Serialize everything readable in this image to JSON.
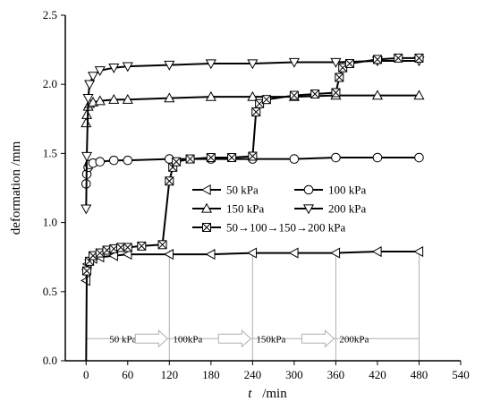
{
  "chart_data": {
    "type": "line",
    "title": "",
    "xlabel": "t",
    "xlabel_unit": "/min",
    "ylabel": "deformation /mm",
    "xlim": [
      -30,
      540
    ],
    "ylim": [
      0.0,
      2.5
    ],
    "xticks": [
      "0",
      "60",
      "120",
      "180",
      "240",
      "300",
      "360",
      "420",
      "480",
      "540"
    ],
    "yticks": [
      "0.0",
      "0.5",
      "1.0",
      "1.5",
      "2.0",
      "2.5"
    ],
    "grid": false,
    "legend_placement": "center-right",
    "series": [
      {
        "name": "50 kPa",
        "marker": "triangle-left",
        "x": [
          0,
          1,
          2,
          5,
          10,
          20,
          40,
          60,
          120,
          180,
          240,
          300,
          360,
          420,
          480
        ],
        "y": [
          0.58,
          0.66,
          0.7,
          0.73,
          0.74,
          0.75,
          0.76,
          0.77,
          0.77,
          0.77,
          0.78,
          0.78,
          0.78,
          0.79,
          0.79
        ]
      },
      {
        "name": "100 kPa",
        "marker": "circle",
        "x": [
          0,
          1,
          3,
          5,
          10,
          20,
          40,
          60,
          120,
          180,
          240,
          300,
          360,
          420,
          480
        ],
        "y": [
          1.28,
          1.35,
          1.4,
          1.42,
          1.43,
          1.44,
          1.45,
          1.45,
          1.46,
          1.46,
          1.46,
          1.46,
          1.47,
          1.47,
          1.47
        ]
      },
      {
        "name": "150 kPa",
        "marker": "triangle-up",
        "x": [
          0,
          1,
          3,
          5,
          10,
          20,
          40,
          60,
          120,
          180,
          240,
          300,
          360,
          420,
          480
        ],
        "y": [
          1.72,
          1.78,
          1.84,
          1.86,
          1.87,
          1.88,
          1.89,
          1.89,
          1.9,
          1.91,
          1.91,
          1.91,
          1.92,
          1.92,
          1.92
        ]
      },
      {
        "name": "200 kPa",
        "marker": "triangle-down",
        "x": [
          0,
          1,
          3,
          5,
          10,
          20,
          40,
          60,
          120,
          180,
          240,
          300,
          360,
          420,
          480
        ],
        "y": [
          1.1,
          1.48,
          1.9,
          2.0,
          2.06,
          2.1,
          2.12,
          2.13,
          2.14,
          2.15,
          2.15,
          2.16,
          2.16,
          2.17,
          2.17
        ]
      },
      {
        "name": "50→100→150→200 kPa",
        "marker": "boxed-x",
        "x": [
          0,
          1,
          5,
          10,
          20,
          30,
          40,
          50,
          60,
          80,
          110,
          120,
          125,
          130,
          150,
          180,
          210,
          240,
          245,
          250,
          260,
          300,
          330,
          360,
          365,
          370,
          380,
          420,
          450,
          480
        ],
        "y": [
          0.0,
          0.65,
          0.72,
          0.76,
          0.78,
          0.8,
          0.81,
          0.82,
          0.82,
          0.83,
          0.84,
          1.3,
          1.4,
          1.44,
          1.46,
          1.47,
          1.47,
          1.48,
          1.8,
          1.86,
          1.89,
          1.92,
          1.93,
          1.94,
          2.05,
          2.12,
          2.15,
          2.18,
          2.19,
          2.19
        ]
      }
    ],
    "stages": [
      {
        "label": "50 kPa",
        "x_from": 0,
        "x_to": 120
      },
      {
        "label": "100kPa",
        "x_from": 120,
        "x_to": 240
      },
      {
        "label": "150kPa",
        "x_from": 240,
        "x_to": 360
      },
      {
        "label": "200kPa",
        "x_from": 360,
        "x_to": 480
      }
    ],
    "colors": {
      "line": "#000000",
      "marker_fill": "#ffffff",
      "guide": "#b0b0b0"
    }
  }
}
